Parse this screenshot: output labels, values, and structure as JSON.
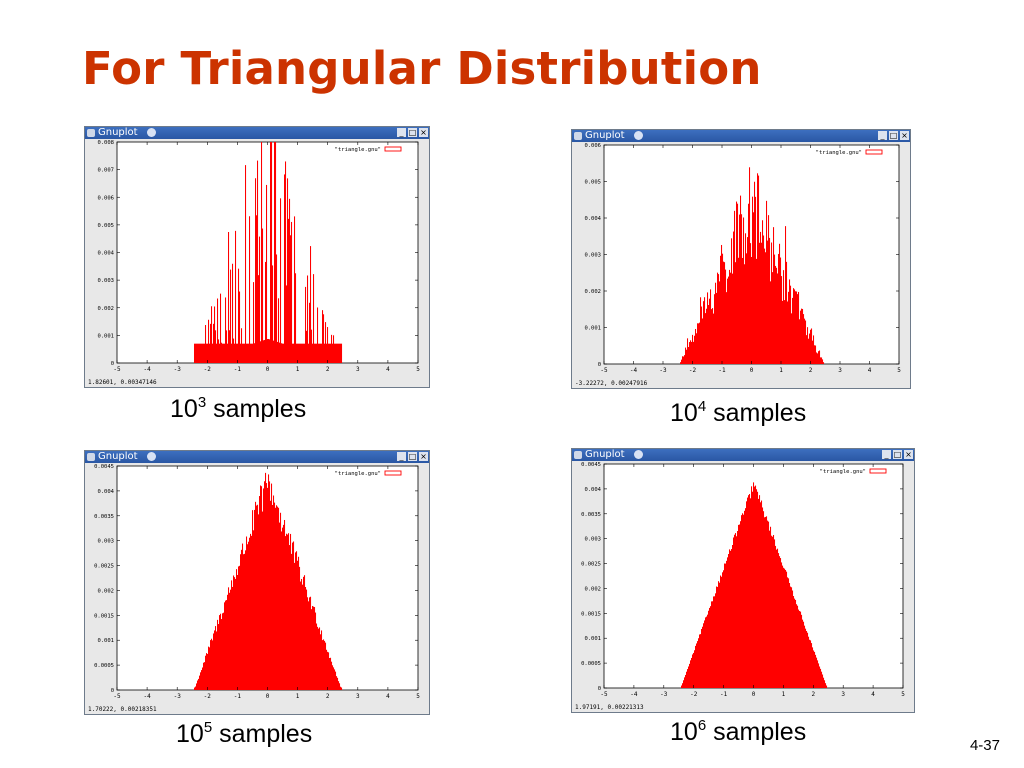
{
  "slide": {
    "title": "For Triangular Distribution",
    "page_number": "4-37"
  },
  "window": {
    "title": "Gnuplot",
    "buttons": {
      "minimize": "_",
      "maximize": "□",
      "close": "×"
    }
  },
  "chart_data": [
    {
      "type": "bar",
      "caption": {
        "base": "10",
        "exponent": "3",
        "text": "samples"
      },
      "legend": "\"triangle.gnu\"",
      "xlim": [
        -5,
        5
      ],
      "ylim": [
        0,
        0.008
      ],
      "x_ticks": [
        "-5",
        "-4",
        "-3",
        "-2",
        "-1",
        "0",
        "1",
        "2",
        "3",
        "4",
        "5"
      ],
      "y_ticks": [
        "0",
        "0.001",
        "0.002",
        "0.003",
        "0.004",
        "0.005",
        "0.006",
        "0.007",
        "0.008"
      ],
      "status": "1.82601,  0.00347146",
      "support": [
        -2.45,
        2.45
      ],
      "peak": 0.0035,
      "max_spike": 0.008,
      "noise": 0.9,
      "series_color": "#ff0000"
    },
    {
      "type": "bar",
      "caption": {
        "base": "10",
        "exponent": "4",
        "text": "samples"
      },
      "legend": "\"triangle.gnu\"",
      "xlim": [
        -5,
        5
      ],
      "ylim": [
        0,
        0.006
      ],
      "x_ticks": [
        "-5",
        "-4",
        "-3",
        "-2",
        "-1",
        "0",
        "1",
        "2",
        "3",
        "4",
        "5"
      ],
      "y_ticks": [
        "0",
        "0.001",
        "0.002",
        "0.003",
        "0.004",
        "0.005",
        "0.006"
      ],
      "status": "-3.22272,  0.00247916",
      "support": [
        -2.45,
        2.45
      ],
      "peak": 0.0043,
      "max_spike": 0.0052,
      "noise": 0.32,
      "series_color": "#ff0000"
    },
    {
      "type": "bar",
      "caption": {
        "base": "10",
        "exponent": "5",
        "text": "samples"
      },
      "legend": "\"triangle.gnu\"",
      "xlim": [
        -5,
        5
      ],
      "ylim": [
        0,
        0.0045
      ],
      "x_ticks": [
        "-5",
        "-4",
        "-3",
        "-2",
        "-1",
        "0",
        "1",
        "2",
        "3",
        "4",
        "5"
      ],
      "y_ticks": [
        "0",
        "0.0005",
        "0.001",
        "0.0015",
        "0.002",
        "0.0025",
        "0.003",
        "0.0035",
        "0.004",
        "0.0045"
      ],
      "status": "1.70222,  0.00218351",
      "support": [
        -2.45,
        2.45
      ],
      "peak": 0.0042,
      "max_spike": 0.0045,
      "noise": 0.09,
      "series_color": "#ff0000"
    },
    {
      "type": "bar",
      "caption": {
        "base": "10",
        "exponent": "6",
        "text": "samples"
      },
      "legend": "\"triangle.gnu\"",
      "xlim": [
        -5,
        5
      ],
      "ylim": [
        0,
        0.0045
      ],
      "x_ticks": [
        "-5",
        "-4",
        "-3",
        "-2",
        "-1",
        "0",
        "1",
        "2",
        "3",
        "4",
        "5"
      ],
      "y_ticks": [
        "0",
        "0.0005",
        "0.001",
        "0.0015",
        "0.002",
        "0.0025",
        "0.003",
        "0.0035",
        "0.004",
        "0.0045"
      ],
      "status": "1.97191,  0.00221313",
      "support": [
        -2.45,
        2.45
      ],
      "peak": 0.0041,
      "max_spike": 0.0041,
      "noise": 0.025,
      "series_color": "#ff0000"
    }
  ]
}
